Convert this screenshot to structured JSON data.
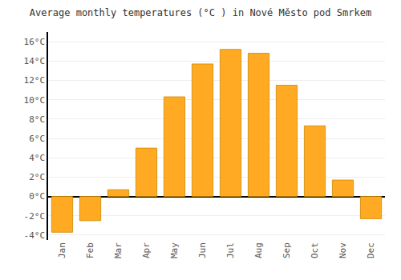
{
  "chart_data": {
    "type": "bar",
    "title": "Average monthly temperatures (°C ) in Nové Město pod Smrkem",
    "categories": [
      "Jan",
      "Feb",
      "Mar",
      "Apr",
      "May",
      "Jun",
      "Jul",
      "Aug",
      "Sep",
      "Oct",
      "Nov",
      "Dec"
    ],
    "values": [
      -3.7,
      -2.5,
      0.7,
      5.0,
      10.3,
      13.7,
      15.2,
      14.8,
      11.5,
      7.3,
      1.7,
      -2.3
    ],
    "color": "#FFAA22",
    "ylim": [
      -4.5,
      17
    ],
    "yticks": [
      {
        "value": -4,
        "label": "-4°C"
      },
      {
        "value": -2,
        "label": "-2°C"
      },
      {
        "value": 0,
        "label": "0°C"
      },
      {
        "value": 2,
        "label": "2°C"
      },
      {
        "value": 4,
        "label": "4°C"
      },
      {
        "value": 6,
        "label": "6°C"
      },
      {
        "value": 8,
        "label": "8°C"
      },
      {
        "value": 10,
        "label": "10°C"
      },
      {
        "value": 12,
        "label": "12°C"
      },
      {
        "value": 14,
        "label": "14°C"
      },
      {
        "value": 16,
        "label": "16°C"
      }
    ],
    "grid": true
  }
}
